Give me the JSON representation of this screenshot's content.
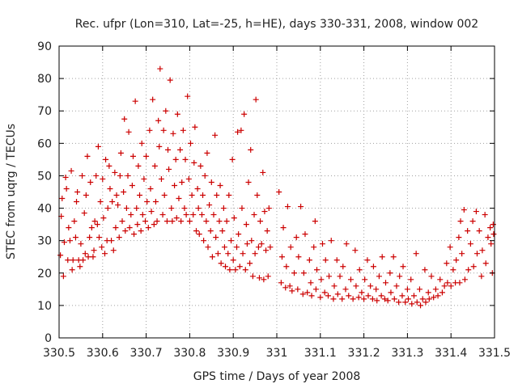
{
  "chart_data": {
    "type": "scatter",
    "title": "Rec. ufpr (Lon=310, Lat=-25, h=HE), days 330-331, 2008, window 002",
    "xlabel": "GPS time / Days of year 2008",
    "ylabel": "STEC from uqrg / TECUs",
    "xlim": [
      330.5,
      331.5
    ],
    "ylim": [
      0,
      90
    ],
    "xticks": [
      330.5,
      330.6,
      330.7,
      330.8,
      330.9,
      331,
      331.1,
      331.2,
      331.3,
      331.4,
      331.5
    ],
    "xtick_labels": [
      "330.5",
      "330.6",
      "330.7",
      "330.8",
      "330.9",
      "331",
      "331.1",
      "331.2",
      "331.3",
      "331.4",
      "331.5"
    ],
    "yticks": [
      0,
      10,
      20,
      30,
      40,
      50,
      60,
      70,
      80,
      90
    ],
    "ytick_labels": [
      "0",
      "10",
      "20",
      "30",
      "40",
      "50",
      "60",
      "70",
      "80",
      "90"
    ],
    "grid": true,
    "marker": "plus",
    "color": "#cc0000",
    "points": [
      [
        330.503,
        25.5
      ],
      [
        330.505,
        37.5
      ],
      [
        330.507,
        43
      ],
      [
        330.51,
        19
      ],
      [
        330.512,
        29.5
      ],
      [
        330.515,
        49.5
      ],
      [
        330.517,
        46
      ],
      [
        330.52,
        24
      ],
      [
        330.522,
        34
      ],
      [
        330.525,
        30
      ],
      [
        330.528,
        51.5
      ],
      [
        330.53,
        21
      ],
      [
        330.532,
        24
      ],
      [
        330.535,
        36
      ],
      [
        330.538,
        31
      ],
      [
        330.54,
        42
      ],
      [
        330.542,
        45
      ],
      [
        330.545,
        24
      ],
      [
        330.548,
        22
      ],
      [
        330.55,
        29
      ],
      [
        330.553,
        50
      ],
      [
        330.555,
        24
      ],
      [
        330.558,
        38.5
      ],
      [
        330.56,
        26
      ],
      [
        330.562,
        44
      ],
      [
        330.565,
        56
      ],
      [
        330.567,
        25
      ],
      [
        330.57,
        31
      ],
      [
        330.572,
        48
      ],
      [
        330.575,
        34
      ],
      [
        330.578,
        25
      ],
      [
        330.58,
        27
      ],
      [
        330.582,
        36
      ],
      [
        330.585,
        50
      ],
      [
        330.588,
        35
      ],
      [
        330.59,
        59
      ],
      [
        330.592,
        31
      ],
      [
        330.595,
        42
      ],
      [
        330.598,
        28
      ],
      [
        330.6,
        49
      ],
      [
        330.602,
        37
      ],
      [
        330.605,
        26
      ],
      [
        330.607,
        55
      ],
      [
        330.61,
        30
      ],
      [
        330.612,
        40
      ],
      [
        330.615,
        53
      ],
      [
        330.617,
        46
      ],
      [
        330.62,
        30
      ],
      [
        330.622,
        42
      ],
      [
        330.625,
        27
      ],
      [
        330.628,
        51
      ],
      [
        330.63,
        34
      ],
      [
        330.632,
        44
      ],
      [
        330.635,
        41
      ],
      [
        330.638,
        31
      ],
      [
        330.64,
        50
      ],
      [
        330.642,
        57
      ],
      [
        330.645,
        36
      ],
      [
        330.648,
        45
      ],
      [
        330.65,
        67.5
      ],
      [
        330.652,
        33
      ],
      [
        330.655,
        40
      ],
      [
        330.658,
        50
      ],
      [
        330.66,
        63.5
      ],
      [
        330.662,
        34
      ],
      [
        330.665,
        38
      ],
      [
        330.668,
        47
      ],
      [
        330.67,
        56
      ],
      [
        330.672,
        32
      ],
      [
        330.675,
        73
      ],
      [
        330.678,
        40
      ],
      [
        330.68,
        35
      ],
      [
        330.682,
        53
      ],
      [
        330.685,
        44
      ],
      [
        330.688,
        33
      ],
      [
        330.69,
        60
      ],
      [
        330.692,
        38
      ],
      [
        330.695,
        49
      ],
      [
        330.698,
        36
      ],
      [
        330.7,
        56
      ],
      [
        330.702,
        42
      ],
      [
        330.705,
        34
      ],
      [
        330.708,
        64
      ],
      [
        330.71,
        46
      ],
      [
        330.712,
        39
      ],
      [
        330.715,
        73.5
      ],
      [
        330.718,
        35
      ],
      [
        330.72,
        53
      ],
      [
        330.722,
        42
      ],
      [
        330.725,
        36
      ],
      [
        330.728,
        67
      ],
      [
        330.73,
        59
      ],
      [
        330.732,
        83
      ],
      [
        330.735,
        49
      ],
      [
        330.738,
        38
      ],
      [
        330.74,
        64
      ],
      [
        330.742,
        44
      ],
      [
        330.745,
        70
      ],
      [
        330.748,
        36
      ],
      [
        330.75,
        58
      ],
      [
        330.752,
        52
      ],
      [
        330.755,
        79.5
      ],
      [
        330.758,
        40
      ],
      [
        330.76,
        36
      ],
      [
        330.762,
        63
      ],
      [
        330.765,
        47
      ],
      [
        330.768,
        55
      ],
      [
        330.77,
        37
      ],
      [
        330.772,
        69
      ],
      [
        330.775,
        43
      ],
      [
        330.778,
        58
      ],
      [
        330.78,
        36
      ],
      [
        330.782,
        48
      ],
      [
        330.785,
        64
      ],
      [
        330.788,
        40
      ],
      [
        330.79,
        55
      ],
      [
        330.792,
        38
      ],
      [
        330.795,
        74.5
      ],
      [
        330.798,
        49
      ],
      [
        330.8,
        36
      ],
      [
        330.802,
        60
      ],
      [
        330.805,
        44
      ],
      [
        330.808,
        38
      ],
      [
        330.81,
        54
      ],
      [
        330.812,
        65
      ],
      [
        330.815,
        33
      ],
      [
        330.818,
        46
      ],
      [
        330.82,
        40
      ],
      [
        330.822,
        32
      ],
      [
        330.825,
        53
      ],
      [
        330.828,
        38
      ],
      [
        330.83,
        44
      ],
      [
        330.832,
        30
      ],
      [
        330.835,
        50
      ],
      [
        330.838,
        36
      ],
      [
        330.84,
        57
      ],
      [
        330.842,
        28
      ],
      [
        330.845,
        41
      ],
      [
        330.848,
        33
      ],
      [
        330.85,
        48
      ],
      [
        330.852,
        25
      ],
      [
        330.855,
        38
      ],
      [
        330.858,
        62.5
      ],
      [
        330.86,
        31
      ],
      [
        330.862,
        44
      ],
      [
        330.865,
        26
      ],
      [
        330.868,
        36
      ],
      [
        330.87,
        47
      ],
      [
        330.872,
        23
      ],
      [
        330.875,
        33
      ],
      [
        330.878,
        40
      ],
      [
        330.88,
        28
      ],
      [
        330.882,
        22
      ],
      [
        330.885,
        36
      ],
      [
        330.888,
        26
      ],
      [
        330.89,
        44
      ],
      [
        330.892,
        21
      ],
      [
        330.895,
        30
      ],
      [
        330.898,
        55
      ],
      [
        330.9,
        24
      ],
      [
        330.902,
        37
      ],
      [
        330.905,
        21
      ],
      [
        330.908,
        28
      ],
      [
        330.91,
        63.5
      ],
      [
        330.912,
        32
      ],
      [
        330.915,
        22
      ],
      [
        330.918,
        64
      ],
      [
        330.92,
        40
      ],
      [
        330.922,
        26
      ],
      [
        330.925,
        69
      ],
      [
        330.928,
        21
      ],
      [
        330.93,
        35
      ],
      [
        330.932,
        29
      ],
      [
        330.935,
        48
      ],
      [
        330.938,
        23
      ],
      [
        330.94,
        58
      ],
      [
        330.942,
        30
      ],
      [
        330.945,
        19
      ],
      [
        330.948,
        38
      ],
      [
        330.95,
        26
      ],
      [
        330.952,
        73.5
      ],
      [
        330.955,
        44
      ],
      [
        330.958,
        28
      ],
      [
        330.96,
        18.5
      ],
      [
        330.962,
        36
      ],
      [
        330.965,
        29
      ],
      [
        330.968,
        51
      ],
      [
        330.97,
        18
      ],
      [
        330.972,
        39
      ],
      [
        330.975,
        27
      ],
      [
        330.978,
        33
      ],
      [
        330.98,
        19
      ],
      [
        330.982,
        40
      ],
      [
        330.985,
        28
      ],
      [
        331.005,
        45
      ],
      [
        331.01,
        17
      ],
      [
        331.012,
        25
      ],
      [
        331.015,
        34
      ],
      [
        331.02,
        15.5
      ],
      [
        331.022,
        22
      ],
      [
        331.025,
        40.5
      ],
      [
        331.03,
        16
      ],
      [
        331.032,
        28
      ],
      [
        331.035,
        14.5
      ],
      [
        331.04,
        20
      ],
      [
        331.045,
        31
      ],
      [
        331.048,
        15
      ],
      [
        331.05,
        25
      ],
      [
        331.055,
        40.5
      ],
      [
        331.06,
        13.5
      ],
      [
        331.062,
        20
      ],
      [
        331.065,
        32
      ],
      [
        331.07,
        14
      ],
      [
        331.075,
        24
      ],
      [
        331.078,
        17
      ],
      [
        331.08,
        13
      ],
      [
        331.085,
        28
      ],
      [
        331.088,
        36
      ],
      [
        331.09,
        15
      ],
      [
        331.092,
        21
      ],
      [
        331.1,
        12.5
      ],
      [
        331.102,
        18
      ],
      [
        331.105,
        29
      ],
      [
        331.11,
        14
      ],
      [
        331.112,
        24
      ],
      [
        331.118,
        13
      ],
      [
        331.12,
        19
      ],
      [
        331.125,
        30
      ],
      [
        331.13,
        12
      ],
      [
        331.132,
        16
      ],
      [
        331.138,
        24
      ],
      [
        331.14,
        13.5
      ],
      [
        331.145,
        19
      ],
      [
        331.15,
        12
      ],
      [
        331.152,
        22
      ],
      [
        331.158,
        15
      ],
      [
        331.16,
        29
      ],
      [
        331.165,
        13
      ],
      [
        331.17,
        18
      ],
      [
        331.175,
        12
      ],
      [
        331.18,
        27
      ],
      [
        331.182,
        16
      ],
      [
        331.188,
        12.5
      ],
      [
        331.19,
        21
      ],
      [
        331.195,
        14
      ],
      [
        331.2,
        12
      ],
      [
        331.202,
        18
      ],
      [
        331.208,
        24
      ],
      [
        331.21,
        13
      ],
      [
        331.215,
        16
      ],
      [
        331.22,
        12
      ],
      [
        331.222,
        22
      ],
      [
        331.228,
        15
      ],
      [
        331.23,
        11.5
      ],
      [
        331.235,
        19
      ],
      [
        331.24,
        13
      ],
      [
        331.242,
        25
      ],
      [
        331.248,
        12
      ],
      [
        331.25,
        17
      ],
      [
        331.255,
        11.5
      ],
      [
        331.26,
        20
      ],
      [
        331.262,
        14
      ],
      [
        331.268,
        25
      ],
      [
        331.27,
        12
      ],
      [
        331.275,
        16
      ],
      [
        331.28,
        11
      ],
      [
        331.282,
        19
      ],
      [
        331.288,
        13
      ],
      [
        331.29,
        22
      ],
      [
        331.295,
        11
      ],
      [
        331.3,
        15
      ],
      [
        331.302,
        12
      ],
      [
        331.308,
        18
      ],
      [
        331.31,
        10.5
      ],
      [
        331.315,
        13
      ],
      [
        331.32,
        26
      ],
      [
        331.322,
        11
      ],
      [
        331.328,
        15
      ],
      [
        331.33,
        10
      ],
      [
        331.335,
        12
      ],
      [
        331.34,
        21
      ],
      [
        331.342,
        11
      ],
      [
        331.348,
        14
      ],
      [
        331.35,
        12
      ],
      [
        331.355,
        19
      ],
      [
        331.36,
        12.5
      ],
      [
        331.365,
        15
      ],
      [
        331.37,
        13
      ],
      [
        331.375,
        18
      ],
      [
        331.38,
        14
      ],
      [
        331.385,
        16
      ],
      [
        331.39,
        23
      ],
      [
        331.392,
        17
      ],
      [
        331.398,
        28
      ],
      [
        331.4,
        16
      ],
      [
        331.405,
        21
      ],
      [
        331.41,
        17
      ],
      [
        331.412,
        24
      ],
      [
        331.418,
        31
      ],
      [
        331.42,
        17
      ],
      [
        331.422,
        36
      ],
      [
        331.425,
        26
      ],
      [
        331.43,
        39.5
      ],
      [
        331.432,
        18
      ],
      [
        331.438,
        33
      ],
      [
        331.44,
        21
      ],
      [
        331.445,
        29
      ],
      [
        331.45,
        36
      ],
      [
        331.452,
        22
      ],
      [
        331.458,
        39
      ],
      [
        331.46,
        26
      ],
      [
        331.465,
        33
      ],
      [
        331.47,
        19
      ],
      [
        331.472,
        27
      ],
      [
        331.478,
        38
      ],
      [
        331.48,
        23
      ],
      [
        331.485,
        31
      ],
      [
        331.49,
        34
      ],
      [
        331.492,
        29
      ],
      [
        331.495,
        20
      ],
      [
        331.497,
        35
      ],
      [
        331.498,
        32
      ]
    ]
  }
}
